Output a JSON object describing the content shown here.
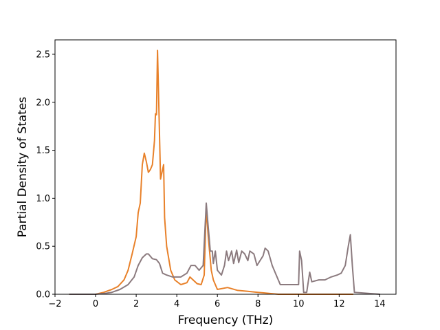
{
  "chart_data": {
    "type": "line",
    "title": "",
    "xlabel": "Frequency (THz)",
    "ylabel": "Partial Density of States",
    "xlim": [
      -2,
      14.8
    ],
    "ylim": [
      0,
      2.65
    ],
    "xticks": [
      -2,
      0,
      2,
      4,
      6,
      8,
      10,
      12,
      14
    ],
    "xtick_labels": [
      "−2",
      "0",
      "2",
      "4",
      "6",
      "8",
      "10",
      "12",
      "14"
    ],
    "yticks": [
      0,
      0.5,
      1.0,
      1.5,
      2.0,
      2.5
    ],
    "ytick_labels": [
      "0.0",
      "0.5",
      "1.0",
      "1.5",
      "2.0",
      "2.5"
    ],
    "grid": false,
    "legend": "none",
    "series": [
      {
        "color": "#e8812a",
        "points": [
          [
            -1.3,
            0.0
          ],
          [
            0.0,
            0.0
          ],
          [
            0.4,
            0.02
          ],
          [
            0.8,
            0.05
          ],
          [
            1.1,
            0.08
          ],
          [
            1.4,
            0.15
          ],
          [
            1.6,
            0.25
          ],
          [
            1.8,
            0.42
          ],
          [
            2.0,
            0.6
          ],
          [
            2.1,
            0.85
          ],
          [
            2.2,
            0.95
          ],
          [
            2.3,
            1.35
          ],
          [
            2.4,
            1.47
          ],
          [
            2.5,
            1.38
          ],
          [
            2.6,
            1.27
          ],
          [
            2.7,
            1.3
          ],
          [
            2.8,
            1.35
          ],
          [
            2.9,
            1.6
          ],
          [
            2.95,
            1.88
          ],
          [
            3.0,
            1.87
          ],
          [
            3.05,
            2.54
          ],
          [
            3.1,
            2.1
          ],
          [
            3.2,
            1.2
          ],
          [
            3.3,
            1.3
          ],
          [
            3.35,
            1.35
          ],
          [
            3.4,
            0.8
          ],
          [
            3.5,
            0.5
          ],
          [
            3.7,
            0.25
          ],
          [
            3.9,
            0.15
          ],
          [
            4.2,
            0.1
          ],
          [
            4.5,
            0.12
          ],
          [
            4.65,
            0.18
          ],
          [
            4.8,
            0.15
          ],
          [
            5.0,
            0.11
          ],
          [
            5.2,
            0.1
          ],
          [
            5.35,
            0.2
          ],
          [
            5.45,
            0.9
          ],
          [
            5.55,
            0.6
          ],
          [
            5.7,
            0.25
          ],
          [
            5.8,
            0.15
          ],
          [
            5.9,
            0.1
          ],
          [
            6.0,
            0.05
          ],
          [
            6.5,
            0.07
          ],
          [
            7.0,
            0.04
          ],
          [
            7.5,
            0.03
          ],
          [
            8.0,
            0.02
          ],
          [
            8.5,
            0.01
          ],
          [
            9.0,
            0.0
          ],
          [
            12.7,
            0.0
          ]
        ]
      },
      {
        "color": "#8b7a7e",
        "points": [
          [
            -1.3,
            0.0
          ],
          [
            0.0,
            0.0
          ],
          [
            0.5,
            0.01
          ],
          [
            0.8,
            0.02
          ],
          [
            1.2,
            0.05
          ],
          [
            1.6,
            0.1
          ],
          [
            1.9,
            0.18
          ],
          [
            2.1,
            0.3
          ],
          [
            2.3,
            0.38
          ],
          [
            2.5,
            0.42
          ],
          [
            2.6,
            0.42
          ],
          [
            2.8,
            0.37
          ],
          [
            3.0,
            0.36
          ],
          [
            3.15,
            0.32
          ],
          [
            3.3,
            0.22
          ],
          [
            3.5,
            0.2
          ],
          [
            3.8,
            0.18
          ],
          [
            4.2,
            0.18
          ],
          [
            4.5,
            0.22
          ],
          [
            4.7,
            0.3
          ],
          [
            4.9,
            0.3
          ],
          [
            5.1,
            0.25
          ],
          [
            5.3,
            0.3
          ],
          [
            5.45,
            0.95
          ],
          [
            5.55,
            0.7
          ],
          [
            5.65,
            0.45
          ],
          [
            5.75,
            0.45
          ],
          [
            5.8,
            0.32
          ],
          [
            5.9,
            0.45
          ],
          [
            6.0,
            0.25
          ],
          [
            6.2,
            0.2
          ],
          [
            6.35,
            0.3
          ],
          [
            6.45,
            0.45
          ],
          [
            6.55,
            0.35
          ],
          [
            6.7,
            0.45
          ],
          [
            6.8,
            0.32
          ],
          [
            6.95,
            0.46
          ],
          [
            7.05,
            0.33
          ],
          [
            7.2,
            0.45
          ],
          [
            7.35,
            0.42
          ],
          [
            7.5,
            0.35
          ],
          [
            7.6,
            0.45
          ],
          [
            7.8,
            0.42
          ],
          [
            7.95,
            0.3
          ],
          [
            8.1,
            0.35
          ],
          [
            8.25,
            0.4
          ],
          [
            8.35,
            0.48
          ],
          [
            8.5,
            0.45
          ],
          [
            8.7,
            0.3
          ],
          [
            8.9,
            0.2
          ],
          [
            9.1,
            0.1
          ],
          [
            9.5,
            0.1
          ],
          [
            9.8,
            0.1
          ],
          [
            10.0,
            0.1
          ],
          [
            10.05,
            0.45
          ],
          [
            10.15,
            0.35
          ],
          [
            10.25,
            0.02
          ],
          [
            10.4,
            0.02
          ],
          [
            10.55,
            0.23
          ],
          [
            10.65,
            0.13
          ],
          [
            11.0,
            0.15
          ],
          [
            11.3,
            0.15
          ],
          [
            11.6,
            0.18
          ],
          [
            11.9,
            0.2
          ],
          [
            12.1,
            0.22
          ],
          [
            12.3,
            0.3
          ],
          [
            12.45,
            0.5
          ],
          [
            12.55,
            0.62
          ],
          [
            12.65,
            0.3
          ],
          [
            12.75,
            0.02
          ],
          [
            14.0,
            0.0
          ]
        ]
      }
    ]
  }
}
